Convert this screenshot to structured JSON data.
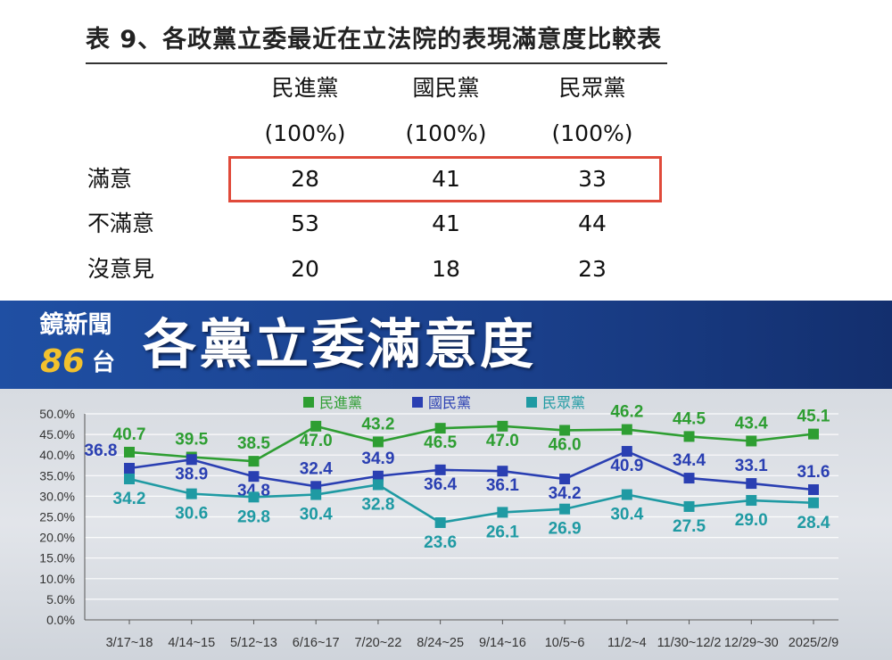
{
  "table": {
    "title": "表 9、各政黨立委最近在立法院的表現滿意度比較表",
    "columns": [
      {
        "name": "民進黨",
        "sub": "(100%)"
      },
      {
        "name": "國民黨",
        "sub": "(100%)"
      },
      {
        "name": "民眾黨",
        "sub": "(100%)"
      }
    ],
    "rows": [
      {
        "label": "滿意",
        "values": [
          "28",
          "41",
          "33"
        ],
        "highlighted": true
      },
      {
        "label": "不滿意",
        "values": [
          "53",
          "41",
          "44"
        ]
      },
      {
        "label": "沒意見",
        "values": [
          "20",
          "18",
          "23"
        ]
      }
    ],
    "highlight_color": "#e04a3a"
  },
  "banner": {
    "logo_top": "鏡新聞",
    "logo_number": "86",
    "logo_suffix": "台",
    "headline": "各黨立委滿意度",
    "background": "#1f4fa3"
  },
  "chart_data": {
    "type": "line",
    "categories": [
      "3/17~18",
      "4/14~15",
      "5/12~13",
      "6/16~17",
      "7/20~22",
      "8/24~25",
      "9/14~16",
      "10/5~6",
      "11/2~4",
      "11/30~12/2",
      "12/29~30",
      "2025/2/9"
    ],
    "series": [
      {
        "name": "民進黨",
        "color": "#2e9e32",
        "values": [
          40.7,
          39.5,
          38.5,
          47.0,
          43.2,
          46.5,
          47.0,
          46.0,
          46.2,
          44.5,
          43.4,
          45.1
        ],
        "labels": [
          "40.7",
          "39.5",
          "38.5",
          "47.0",
          "43.2",
          "46.5",
          "47.0",
          "46.0",
          "46.2",
          "44.5",
          "43.4",
          "45.1"
        ]
      },
      {
        "name": "國民黨",
        "color": "#2a3fb2",
        "values": [
          36.8,
          38.9,
          34.8,
          32.4,
          34.9,
          36.4,
          36.1,
          34.2,
          40.9,
          34.4,
          33.1,
          31.6
        ],
        "labels": [
          "36.8",
          "38.9",
          "34.8",
          "32.4",
          "34.9",
          "36.4",
          "36.1",
          "34.2",
          "40.9",
          "34.4",
          "33.1",
          "31.6"
        ]
      },
      {
        "name": "民眾黨",
        "color": "#1f9aa3",
        "values": [
          34.2,
          30.6,
          29.8,
          30.4,
          32.8,
          23.6,
          26.1,
          26.9,
          30.4,
          27.5,
          29.0,
          28.4
        ],
        "labels": [
          "34.2",
          "30.6",
          "29.8",
          "30.4",
          "32.8",
          "23.6",
          "26.1",
          "26.9",
          "30.4",
          "27.5",
          "29.0",
          "28.4"
        ]
      }
    ],
    "yticks": [
      "0.0%",
      "5.0%",
      "10.0%",
      "15.0%",
      "20.0%",
      "25.0%",
      "30.0%",
      "35.0%",
      "40.0%",
      "45.0%",
      "50.0%"
    ],
    "ylim": [
      0,
      50
    ],
    "grid": true,
    "legend_position": "top-center",
    "title": "",
    "xlabel": "",
    "ylabel": ""
  }
}
